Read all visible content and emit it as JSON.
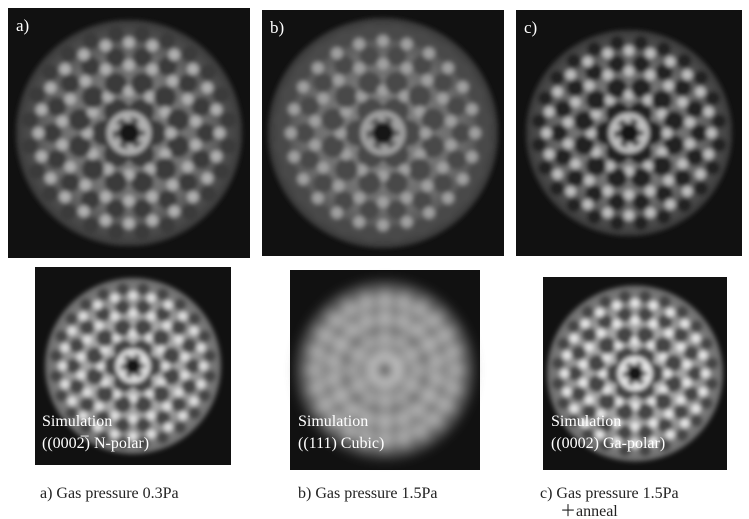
{
  "panels": [
    {
      "label": "a)",
      "simulation": {
        "title": "Simulation",
        "model": "((0002̅) N-polar)"
      },
      "caption": [
        "a) Gas pressure 0.3Pa"
      ]
    },
    {
      "label": "b)",
      "simulation": {
        "title": "Simulation",
        "model": "((111) Cubic)"
      },
      "caption": [
        "b) Gas pressure 1.5Pa"
      ]
    },
    {
      "label": "c)",
      "simulation": {
        "title": "Simulation",
        "model": "((0002) Ga-polar)"
      },
      "caption": [
        "c) Gas pressure 1.5Pa",
        "＋anneal"
      ]
    }
  ]
}
